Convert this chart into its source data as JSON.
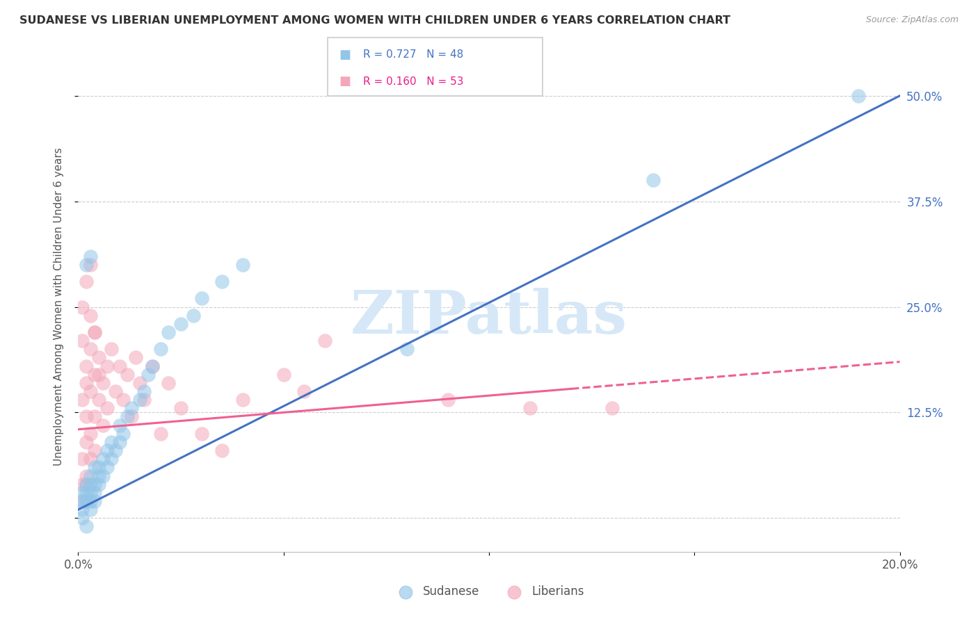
{
  "title": "SUDANESE VS LIBERIAN UNEMPLOYMENT AMONG WOMEN WITH CHILDREN UNDER 6 YEARS CORRELATION CHART",
  "source": "Source: ZipAtlas.com",
  "ylabel": "Unemployment Among Women with Children Under 6 years",
  "xlim": [
    0.0,
    0.2
  ],
  "ylim": [
    -0.04,
    0.54
  ],
  "yticks_right": [
    0.0,
    0.125,
    0.25,
    0.375,
    0.5
  ],
  "ytick_labels_right": [
    "",
    "12.5%",
    "25.0%",
    "37.5%",
    "50.0%"
  ],
  "xticks": [
    0.0,
    0.05,
    0.1,
    0.15,
    0.2
  ],
  "xtick_labels": [
    "0.0%",
    "",
    "",
    "",
    "20.0%"
  ],
  "legend_label1": "Sudanese",
  "legend_label2": "Liberians",
  "sudanese_color": "#92C5E8",
  "liberian_color": "#F4A7B9",
  "trend_blue": "#4472C4",
  "trend_pink": "#F06090",
  "watermark": "ZIPatlas",
  "watermark_color": "#D6E8F7",
  "sudanese_x": [
    0.001,
    0.001,
    0.001,
    0.001,
    0.002,
    0.002,
    0.002,
    0.002,
    0.002,
    0.003,
    0.003,
    0.003,
    0.003,
    0.003,
    0.004,
    0.004,
    0.004,
    0.004,
    0.005,
    0.005,
    0.005,
    0.006,
    0.006,
    0.007,
    0.007,
    0.008,
    0.008,
    0.009,
    0.01,
    0.01,
    0.011,
    0.012,
    0.013,
    0.015,
    0.016,
    0.017,
    0.018,
    0.02,
    0.022,
    0.025,
    0.028,
    0.03,
    0.035,
    0.04,
    0.002,
    0.003,
    0.08,
    0.14,
    0.19
  ],
  "sudanese_y": [
    0.01,
    0.02,
    0.03,
    0.0,
    0.02,
    0.03,
    0.04,
    0.02,
    -0.01,
    0.03,
    0.04,
    0.02,
    0.01,
    0.05,
    0.03,
    0.04,
    0.06,
    0.02,
    0.04,
    0.05,
    0.06,
    0.05,
    0.07,
    0.06,
    0.08,
    0.07,
    0.09,
    0.08,
    0.09,
    0.11,
    0.1,
    0.12,
    0.13,
    0.14,
    0.15,
    0.17,
    0.18,
    0.2,
    0.22,
    0.23,
    0.24,
    0.26,
    0.28,
    0.3,
    0.3,
    0.31,
    0.2,
    0.4,
    0.5
  ],
  "liberian_x": [
    0.001,
    0.001,
    0.001,
    0.001,
    0.001,
    0.002,
    0.002,
    0.002,
    0.002,
    0.002,
    0.003,
    0.003,
    0.003,
    0.003,
    0.004,
    0.004,
    0.004,
    0.004,
    0.005,
    0.005,
    0.006,
    0.006,
    0.007,
    0.007,
    0.008,
    0.009,
    0.01,
    0.011,
    0.012,
    0.013,
    0.014,
    0.015,
    0.016,
    0.018,
    0.02,
    0.022,
    0.025,
    0.03,
    0.035,
    0.001,
    0.002,
    0.003,
    0.003,
    0.004,
    0.005,
    0.04,
    0.05,
    0.055,
    0.002,
    0.06,
    0.09,
    0.11,
    0.13
  ],
  "liberian_y": [
    0.21,
    0.14,
    0.07,
    0.04,
    0.02,
    0.18,
    0.16,
    0.12,
    0.09,
    0.05,
    0.2,
    0.15,
    0.1,
    0.07,
    0.22,
    0.17,
    0.12,
    0.08,
    0.19,
    0.14,
    0.16,
    0.11,
    0.18,
    0.13,
    0.2,
    0.15,
    0.18,
    0.14,
    0.17,
    0.12,
    0.19,
    0.16,
    0.14,
    0.18,
    0.1,
    0.16,
    0.13,
    0.1,
    0.08,
    0.25,
    0.28,
    0.24,
    0.3,
    0.22,
    0.17,
    0.14,
    0.17,
    0.15,
    0.04,
    0.21,
    0.14,
    0.13,
    0.13
  ],
  "blue_trend_x0": 0.0,
  "blue_trend_y0": 0.01,
  "blue_trend_x1": 0.2,
  "blue_trend_y1": 0.5,
  "pink_trend_x0": 0.0,
  "pink_trend_y0": 0.105,
  "pink_trend_x1": 0.2,
  "pink_trend_y1": 0.185
}
